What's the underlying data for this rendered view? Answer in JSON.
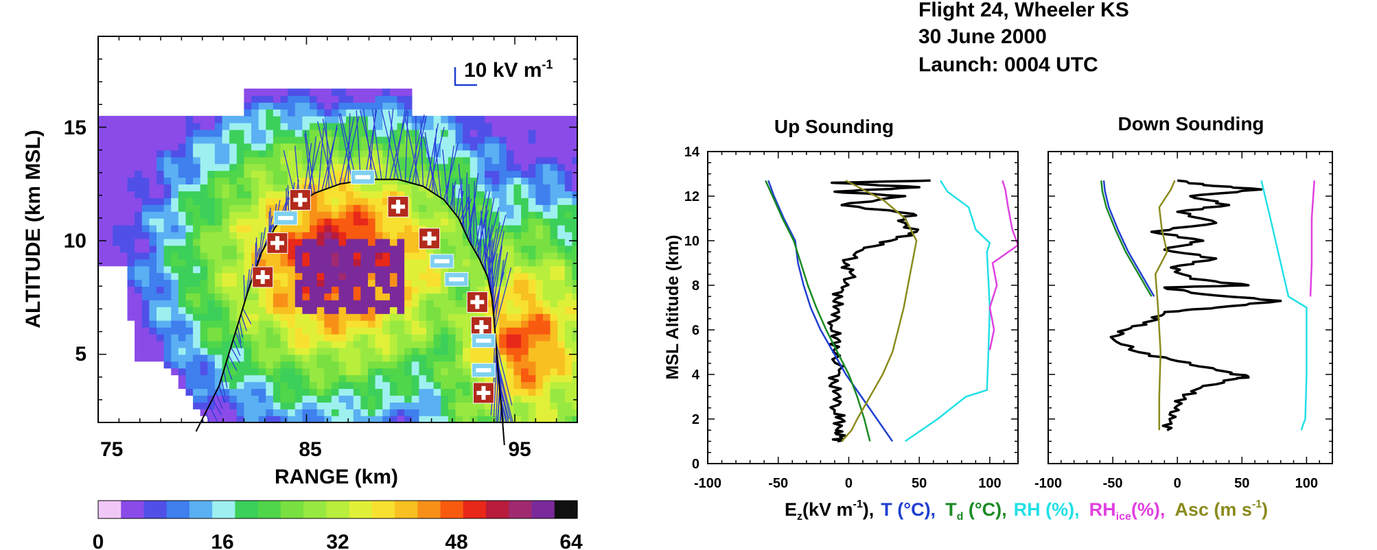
{
  "colors": {
    "ez": "#000000",
    "T": "#1f3fd0",
    "Td": "#1a8a22",
    "RH": "#22e0e6",
    "RHice": "#e040e0",
    "Asc": "#8b8b1e",
    "field": "#2b3ad6",
    "plus_box": "#b22a1c",
    "minus_box": "#7fd0f0"
  },
  "header": {
    "line1": "Flight 24, Wheeler KS",
    "line2": "30 June 2000",
    "line3": "Launch: 0004 UTC"
  },
  "chart_data": [
    {
      "type": "heatmap",
      "title": "",
      "xlabel": "RANGE  (km)",
      "ylabel": "ALTITUDE  (km MSL)",
      "xlim": [
        75,
        98
      ],
      "ylim": [
        2,
        19
      ],
      "x_ticks": [
        "75",
        "85",
        "95"
      ],
      "y_ticks": [
        "5",
        "10",
        "15"
      ],
      "scale_label": "10 kV m",
      "scale_unit_sup": "-1",
      "colorbar": {
        "min": 0,
        "max": 64,
        "tick_labels": [
          "0",
          "16",
          "32",
          "48",
          "64"
        ],
        "colors": [
          "#f0c8f8",
          "#8a4be8",
          "#5050e8",
          "#3f7fee",
          "#5ab0f2",
          "#9ef0f0",
          "#3ccf5a",
          "#50d64a",
          "#78e040",
          "#98e842",
          "#b8ee3c",
          "#e0f038",
          "#f8e030",
          "#f8c020",
          "#f89018",
          "#f85a10",
          "#e82818",
          "#b81c3c",
          "#a02a70",
          "#7a2a9a",
          "#101010"
        ]
      },
      "balloon_track": [
        [
          79.7,
          1.6
        ],
        [
          80.8,
          3.6
        ],
        [
          81.6,
          6.0
        ],
        [
          82.2,
          7.8
        ],
        [
          82.8,
          9.4
        ],
        [
          83.5,
          10.6
        ],
        [
          84.4,
          11.5
        ],
        [
          85.4,
          12.1
        ],
        [
          86.6,
          12.5
        ],
        [
          88,
          12.7
        ],
        [
          89.4,
          12.7
        ],
        [
          90.6,
          12.4
        ],
        [
          91.6,
          11.8
        ],
        [
          92.3,
          11.0
        ],
        [
          92.8,
          10.0
        ],
        [
          93.3,
          9.2
        ],
        [
          93.7,
          8.4
        ],
        [
          93.9,
          7.5
        ],
        [
          94.0,
          6.6
        ],
        [
          94.1,
          5.4
        ],
        [
          94.2,
          4.2
        ],
        [
          94.3,
          3.2
        ],
        [
          94.4,
          2.2
        ],
        [
          94.5,
          1.0
        ]
      ],
      "plus_charges": [
        [
          82.9,
          8.4
        ],
        [
          83.6,
          9.9
        ],
        [
          84.7,
          11.8
        ],
        [
          89.4,
          11.5
        ],
        [
          90.9,
          10.1
        ],
        [
          93.2,
          7.3
        ],
        [
          93.4,
          6.2
        ],
        [
          93.5,
          3.3
        ]
      ],
      "minus_charges": [
        [
          84.0,
          11.0
        ],
        [
          87.7,
          12.8
        ],
        [
          91.5,
          9.1
        ],
        [
          92.2,
          8.3
        ],
        [
          93.5,
          5.6
        ],
        [
          93.5,
          4.3
        ]
      ]
    },
    {
      "type": "line",
      "title": "Up Sounding",
      "ylabel": "MSL Altitude (km)",
      "xlim": [
        -100,
        120
      ],
      "ylim": [
        0,
        14
      ],
      "x_ticks": [
        "-100",
        "-50",
        "0",
        "50",
        "100"
      ],
      "y_ticks": [
        "0",
        "2",
        "4",
        "6",
        "8",
        "10",
        "12",
        "14"
      ],
      "series": [
        {
          "key": "Ez",
          "values": [
            [
              -8,
              1.0
            ],
            [
              -6,
              1.2
            ],
            [
              -9,
              1.5
            ],
            [
              -5,
              2.0
            ],
            [
              -10,
              2.4
            ],
            [
              -6,
              3.0
            ],
            [
              -12,
              3.6
            ],
            [
              -7,
              4.2
            ],
            [
              -11,
              5.0
            ],
            [
              -8,
              5.6
            ],
            [
              -12,
              6.2
            ],
            [
              -7,
              6.8
            ],
            [
              -9,
              7.4
            ],
            [
              -5,
              7.9
            ],
            [
              2,
              8.5
            ],
            [
              -3,
              9.0
            ],
            [
              10,
              9.6
            ],
            [
              30,
              10.0
            ],
            [
              48,
              10.4
            ],
            [
              35,
              10.9
            ],
            [
              46,
              11.2
            ],
            [
              -5,
              11.6
            ],
            [
              40,
              12.0
            ],
            [
              -10,
              12.2
            ],
            [
              50,
              12.4
            ],
            [
              -12,
              12.6
            ],
            [
              58,
              12.7
            ]
          ]
        },
        {
          "key": "T",
          "values": [
            [
              31,
              1.0
            ],
            [
              20,
              2.0
            ],
            [
              9,
              3.0
            ],
            [
              -2,
              4.0
            ],
            [
              -11,
              5.0
            ],
            [
              -20,
              6.0
            ],
            [
              -27,
              7.0
            ],
            [
              -32,
              8.0
            ],
            [
              -36,
              9.0
            ],
            [
              -38,
              10.0
            ],
            [
              -46,
              11.0
            ],
            [
              -53,
              12.0
            ],
            [
              -57,
              12.7
            ]
          ]
        },
        {
          "key": "Td",
          "values": [
            [
              15,
              1.0
            ],
            [
              11,
              2.0
            ],
            [
              6,
              3.0
            ],
            [
              0,
              4.0
            ],
            [
              -8,
              5.0
            ],
            [
              -16,
              6.0
            ],
            [
              -23,
              7.0
            ],
            [
              -29,
              8.0
            ],
            [
              -34,
              9.0
            ],
            [
              -39,
              10.0
            ],
            [
              -47,
              11.0
            ],
            [
              -54,
              12.0
            ],
            [
              -59,
              12.7
            ]
          ]
        },
        {
          "key": "RH",
          "values": [
            [
              40,
              1.0
            ],
            [
              63,
              2.0
            ],
            [
              83,
              3.0
            ],
            [
              98,
              3.3
            ],
            [
              99,
              5.0
            ],
            [
              100,
              7.0
            ],
            [
              98,
              9.5
            ],
            [
              100,
              9.9
            ],
            [
              90,
              10.5
            ],
            [
              85,
              11.5
            ],
            [
              70,
              12.2
            ],
            [
              65,
              12.7
            ]
          ]
        },
        {
          "key": "RHice",
          "values": [
            [
              100,
              5.1
            ],
            [
              103,
              6.0
            ],
            [
              100,
              7.0
            ],
            [
              105,
              8.0
            ],
            [
              102,
              9.0
            ],
            [
              120,
              9.8
            ],
            [
              116,
              10.5
            ],
            [
              113,
              11.5
            ],
            [
              111,
              12.3
            ],
            [
              109,
              12.7
            ]
          ]
        },
        {
          "key": "Asc",
          "values": [
            [
              -5,
              1.0
            ],
            [
              2,
              1.5
            ],
            [
              6,
              2.0
            ],
            [
              15,
              3.0
            ],
            [
              24,
              4.0
            ],
            [
              31,
              5.0
            ],
            [
              35,
              6.0
            ],
            [
              39,
              7.0
            ],
            [
              42,
              8.0
            ],
            [
              45,
              9.0
            ],
            [
              48,
              10.0
            ],
            [
              40,
              11.0
            ],
            [
              25,
              11.8
            ],
            [
              10,
              12.3
            ],
            [
              -2,
              12.7
            ]
          ]
        }
      ]
    },
    {
      "type": "line",
      "title": "Down Sounding",
      "xlim": [
        -100,
        120
      ],
      "ylim": [
        0,
        14
      ],
      "x_ticks": [
        "-100",
        "-50",
        "0",
        "50",
        "100"
      ],
      "y_ticks": [],
      "series": [
        {
          "key": "Ez",
          "values": [
            [
              -8,
              1.5
            ],
            [
              -6,
              2.0
            ],
            [
              -2,
              2.5
            ],
            [
              5,
              3.0
            ],
            [
              18,
              3.4
            ],
            [
              45,
              3.8
            ],
            [
              55,
              3.9
            ],
            [
              30,
              4.2
            ],
            [
              0,
              4.6
            ],
            [
              -30,
              5.0
            ],
            [
              -50,
              5.6
            ],
            [
              -40,
              6.0
            ],
            [
              -20,
              6.4
            ],
            [
              -10,
              6.8
            ],
            [
              30,
              7.0
            ],
            [
              80,
              7.3
            ],
            [
              20,
              7.6
            ],
            [
              -10,
              7.9
            ],
            [
              55,
              8.0
            ],
            [
              10,
              8.3
            ],
            [
              -5,
              8.8
            ],
            [
              30,
              9.2
            ],
            [
              -10,
              9.6
            ],
            [
              20,
              10.0
            ],
            [
              -20,
              10.4
            ],
            [
              30,
              10.8
            ],
            [
              0,
              11.3
            ],
            [
              40,
              11.6
            ],
            [
              10,
              12.0
            ],
            [
              65,
              12.3
            ],
            [
              20,
              12.5
            ],
            [
              0,
              12.7
            ]
          ]
        },
        {
          "key": "T",
          "values": [
            [
              -18,
              7.5
            ],
            [
              -28,
              8.5
            ],
            [
              -38,
              9.5
            ],
            [
              -46,
              10.5
            ],
            [
              -53,
              11.5
            ],
            [
              -56,
              12.2
            ],
            [
              -57,
              12.7
            ]
          ]
        },
        {
          "key": "Td",
          "values": [
            [
              -20,
              7.5
            ],
            [
              -30,
              8.5
            ],
            [
              -40,
              9.5
            ],
            [
              -48,
              10.5
            ],
            [
              -55,
              11.5
            ],
            [
              -58,
              12.2
            ],
            [
              -59,
              12.7
            ]
          ]
        },
        {
          "key": "RH",
          "values": [
            [
              96,
              1.5
            ],
            [
              97,
              1.7
            ],
            [
              99,
              2.0
            ],
            [
              100,
              4.0
            ],
            [
              100,
              7.0
            ],
            [
              86,
              7.5
            ],
            [
              80,
              9.0
            ],
            [
              72,
              11.0
            ],
            [
              65,
              12.7
            ]
          ]
        },
        {
          "key": "RHice",
          "values": [
            [
              103,
              7.5
            ],
            [
              104,
              9.0
            ],
            [
              104,
              11.0
            ],
            [
              106,
              12.7
            ]
          ]
        },
        {
          "key": "Asc",
          "values": [
            [
              -14,
              1.5
            ],
            [
              -14,
              3.0
            ],
            [
              -13,
              5.0
            ],
            [
              -15,
              7.0
            ],
            [
              -17,
              8.5
            ],
            [
              -8,
              9.5
            ],
            [
              -12,
              10.5
            ],
            [
              -14,
              11.5
            ],
            [
              -5,
              12.3
            ],
            [
              -2,
              12.7
            ]
          ]
        }
      ]
    }
  ],
  "legend": {
    "ez": "E",
    "ez_sub": "z",
    "ez_unit": "(kV m",
    "ez_sup": "-1",
    "ez_close": "),",
    "T": "T (°C),",
    "Td": "T",
    "Td_sub": "d",
    "Td_unit": " (°C),",
    "RH": "RH (%),",
    "RHice": "RH",
    "RHice_sub": "ice",
    "RHice_unit": "(%),",
    "Asc": "Asc (m s",
    "Asc_sup": "-1",
    "Asc_close": ")"
  }
}
